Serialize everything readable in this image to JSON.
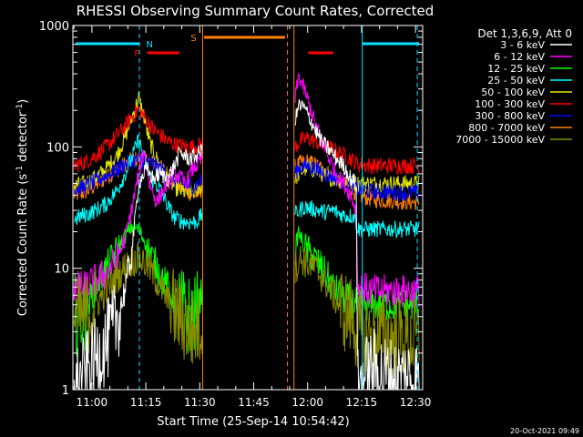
{
  "chart_data": {
    "type": "line",
    "title": "RHESSI Observing Summary Count Rates, Corrected",
    "ylabel_text": "Corrected Count Rate (s",
    "ylabel_sup": "-1",
    "ylabel_tail": " detector",
    "ylabel_sup2": "-1",
    "ylabel_end": ")",
    "xlabel": "Start Time (25-Sep-14 10:54:42)",
    "timestamp": "20-Oct-2021 09:49",
    "x_unit": "minutes of day (UT)",
    "x_range": [
      654.7,
      752
    ],
    "y_scale": "log",
    "y_range": [
      1,
      1000
    ],
    "x_ticks": [
      {
        "v": 660,
        "label": "11:00"
      },
      {
        "v": 675,
        "label": "11:15"
      },
      {
        "v": 690,
        "label": "11:30"
      },
      {
        "v": 705,
        "label": "11:45"
      },
      {
        "v": 720,
        "label": "12:00"
      },
      {
        "v": 735,
        "label": "12:15"
      },
      {
        "v": 750,
        "label": "12:30"
      }
    ],
    "y_ticks": [
      {
        "v": 1,
        "label": "1"
      },
      {
        "v": 10,
        "label": "10"
      },
      {
        "v": 100,
        "label": "100"
      },
      {
        "v": 1000,
        "label": "1000"
      }
    ],
    "legend_title": "Det 1,3,6,9, Att 0",
    "legend_placement": "right",
    "series": [
      {
        "name": "3 - 6 keV",
        "color": "#ffffff",
        "seg1": [
          [
            655,
            1.0
          ],
          [
            660,
            1.6
          ],
          [
            664,
            2.4
          ],
          [
            668,
            4.5
          ],
          [
            671,
            13
          ],
          [
            673,
            50
          ],
          [
            675,
            65
          ],
          [
            677,
            55
          ],
          [
            679,
            60
          ],
          [
            681,
            55
          ],
          [
            683,
            70
          ],
          [
            684.5,
            90
          ],
          [
            687,
            80
          ],
          [
            689,
            85
          ],
          [
            690.8,
            95
          ]
        ],
        "seg2": [
          [
            716.5,
            160
          ],
          [
            717.5,
            220
          ],
          [
            719,
            210
          ],
          [
            720.5,
            175
          ],
          [
            722,
            140
          ],
          [
            724,
            110
          ],
          [
            726,
            95
          ],
          [
            728,
            80
          ],
          [
            730,
            70
          ],
          [
            732,
            55
          ],
          [
            733.5,
            50
          ],
          [
            734,
            1.0
          ],
          [
            735,
            1.2
          ],
          [
            738,
            1.5
          ],
          [
            744,
            1.2
          ],
          [
            748,
            1.3
          ],
          [
            751,
            1.2
          ]
        ]
      },
      {
        "name": "6 - 12 keV",
        "color": "#ff00ff",
        "seg1": [
          [
            655,
            7
          ],
          [
            658,
            7
          ],
          [
            661,
            8
          ],
          [
            664,
            9
          ],
          [
            667,
            12
          ],
          [
            669,
            17
          ],
          [
            671,
            30
          ],
          [
            673,
            60
          ],
          [
            674.5,
            95
          ],
          [
            676,
            50
          ],
          [
            678,
            35
          ],
          [
            680,
            45
          ],
          [
            682,
            55
          ],
          [
            683.5,
            60
          ],
          [
            686,
            50
          ],
          [
            688,
            65
          ],
          [
            690.8,
            80
          ]
        ],
        "seg2": [
          [
            716.5,
            250
          ],
          [
            717.5,
            380
          ],
          [
            719,
            300
          ],
          [
            720.5,
            220
          ],
          [
            722,
            160
          ],
          [
            724,
            110
          ],
          [
            726,
            80
          ],
          [
            728,
            60
          ],
          [
            730,
            50
          ],
          [
            732,
            40
          ],
          [
            733.5,
            30
          ],
          [
            734,
            7
          ],
          [
            738,
            6.5
          ],
          [
            744,
            6.5
          ],
          [
            748,
            6.5
          ],
          [
            751,
            6.5
          ]
        ]
      },
      {
        "name": "12 - 25 keV",
        "color": "#00ff00",
        "seg1": [
          [
            655,
            4
          ],
          [
            658,
            4.5
          ],
          [
            661,
            7
          ],
          [
            664,
            10
          ],
          [
            667,
            14
          ],
          [
            669,
            18
          ],
          [
            671,
            22
          ],
          [
            673,
            21
          ],
          [
            675,
            16
          ],
          [
            677,
            12
          ],
          [
            679,
            9
          ],
          [
            681,
            7
          ],
          [
            683,
            5.5
          ],
          [
            686,
            4.2
          ],
          [
            689,
            4
          ],
          [
            690.8,
            7
          ]
        ],
        "seg2": [
          [
            716.5,
            14
          ],
          [
            717.5,
            20
          ],
          [
            719,
            15
          ],
          [
            721,
            13
          ],
          [
            723,
            11
          ],
          [
            725,
            9
          ],
          [
            727,
            7
          ],
          [
            729,
            6
          ],
          [
            731,
            5.5
          ],
          [
            734,
            5
          ],
          [
            738,
            5
          ],
          [
            744,
            5
          ],
          [
            748,
            5
          ],
          [
            751,
            5
          ]
        ]
      },
      {
        "name": "25 - 50 keV",
        "color": "#00ffff",
        "seg1": [
          [
            655,
            25
          ],
          [
            657,
            27
          ],
          [
            659,
            28
          ],
          [
            661,
            30
          ],
          [
            664,
            34
          ],
          [
            667,
            44
          ],
          [
            669,
            58
          ],
          [
            671,
            80
          ],
          [
            673,
            115
          ],
          [
            675,
            72
          ],
          [
            677,
            52
          ],
          [
            679,
            45
          ],
          [
            681,
            33
          ],
          [
            683,
            26
          ],
          [
            686,
            24
          ],
          [
            689,
            24
          ],
          [
            690.8,
            28
          ]
        ],
        "seg2": [
          [
            716.5,
            28
          ],
          [
            719,
            32
          ],
          [
            721,
            31
          ],
          [
            723,
            30
          ],
          [
            725,
            29
          ],
          [
            727,
            30
          ],
          [
            729,
            28
          ],
          [
            731,
            27
          ],
          [
            733,
            27
          ],
          [
            734,
            21
          ],
          [
            738,
            21
          ],
          [
            744,
            21
          ],
          [
            748,
            21
          ],
          [
            751,
            21
          ]
        ]
      },
      {
        "name": "50 - 100 keV",
        "color": "#e6e600",
        "seg1": [
          [
            655,
            48
          ],
          [
            658,
            50
          ],
          [
            661,
            56
          ],
          [
            664,
            66
          ],
          [
            667,
            86
          ],
          [
            669,
            115
          ],
          [
            671,
            170
          ],
          [
            673,
            255
          ],
          [
            674.5,
            175
          ],
          [
            676,
            110
          ],
          [
            678,
            80
          ],
          [
            680,
            62
          ],
          [
            682,
            50
          ],
          [
            684,
            44
          ],
          [
            686,
            42
          ],
          [
            688,
            42
          ],
          [
            690.8,
            48
          ]
        ],
        "seg2": [
          [
            716.5,
            55
          ],
          [
            718,
            62
          ],
          [
            720,
            68
          ],
          [
            722,
            64
          ],
          [
            724,
            60
          ],
          [
            726,
            56
          ],
          [
            728,
            54
          ],
          [
            730,
            52
          ],
          [
            732,
            50
          ],
          [
            734,
            50
          ],
          [
            738,
            50
          ],
          [
            744,
            50
          ],
          [
            748,
            50
          ],
          [
            751,
            50
          ]
        ]
      },
      {
        "name": "100 - 300 keV",
        "color": "#ff0000",
        "seg1": [
          [
            655,
            70
          ],
          [
            658,
            75
          ],
          [
            661,
            85
          ],
          [
            664,
            100
          ],
          [
            667,
            125
          ],
          [
            669,
            145
          ],
          [
            671,
            175
          ],
          [
            673,
            205
          ],
          [
            675,
            170
          ],
          [
            677,
            140
          ],
          [
            679,
            125
          ],
          [
            681,
            112
          ],
          [
            683,
            105
          ],
          [
            686,
            100
          ],
          [
            688,
            100
          ],
          [
            690.8,
            105
          ]
        ],
        "seg2": [
          [
            716.5,
            100
          ],
          [
            718,
            112
          ],
          [
            720,
            118
          ],
          [
            722,
            112
          ],
          [
            724,
            104
          ],
          [
            726,
            98
          ],
          [
            728,
            92
          ],
          [
            730,
            86
          ],
          [
            732,
            80
          ],
          [
            734,
            72
          ],
          [
            738,
            70
          ],
          [
            744,
            70
          ],
          [
            748,
            70
          ],
          [
            751,
            70
          ]
        ]
      },
      {
        "name": "300 - 800 keV",
        "color": "#0000ff",
        "seg1": [
          [
            655,
            45
          ],
          [
            658,
            47
          ],
          [
            661,
            52
          ],
          [
            664,
            58
          ],
          [
            667,
            65
          ],
          [
            669,
            72
          ],
          [
            671,
            76
          ],
          [
            673,
            78
          ],
          [
            675,
            76
          ],
          [
            677,
            72
          ],
          [
            679,
            66
          ],
          [
            681,
            60
          ],
          [
            683,
            54
          ],
          [
            685,
            50
          ],
          [
            687,
            48
          ],
          [
            689,
            48
          ],
          [
            690.8,
            55
          ]
        ],
        "seg2": [
          [
            716.5,
            62
          ],
          [
            718,
            68
          ],
          [
            720,
            70
          ],
          [
            722,
            66
          ],
          [
            724,
            62
          ],
          [
            726,
            58
          ],
          [
            728,
            55
          ],
          [
            730,
            52
          ],
          [
            732,
            50
          ],
          [
            734,
            45
          ],
          [
            738,
            43
          ],
          [
            744,
            42
          ],
          [
            748,
            42
          ],
          [
            751,
            42
          ]
        ]
      },
      {
        "name": "800 - 7000 keV",
        "color": "#ff8000",
        "seg1": [
          [
            655,
            40
          ],
          [
            658,
            42
          ],
          [
            661,
            48
          ],
          [
            664,
            56
          ],
          [
            667,
            64
          ],
          [
            669,
            72
          ],
          [
            671,
            78
          ],
          [
            673,
            80
          ],
          [
            675,
            78
          ],
          [
            677,
            74
          ],
          [
            679,
            68
          ],
          [
            681,
            60
          ],
          [
            683,
            52
          ],
          [
            685,
            46
          ],
          [
            687,
            42
          ],
          [
            689,
            40
          ],
          [
            690.8,
            46
          ]
        ],
        "seg2": [
          [
            716.5,
            68
          ],
          [
            718,
            74
          ],
          [
            720,
            76
          ],
          [
            722,
            72
          ],
          [
            724,
            66
          ],
          [
            726,
            60
          ],
          [
            728,
            55
          ],
          [
            730,
            50
          ],
          [
            732,
            46
          ],
          [
            734,
            40
          ],
          [
            738,
            37
          ],
          [
            744,
            36
          ],
          [
            748,
            35
          ],
          [
            751,
            35
          ]
        ]
      },
      {
        "name": "7000 - 15000 keV",
        "color": "#8b8b00",
        "seg1": [
          [
            655,
            3.8
          ],
          [
            658,
            4
          ],
          [
            661,
            5
          ],
          [
            664,
            6.5
          ],
          [
            667,
            8.5
          ],
          [
            669,
            10
          ],
          [
            671,
            11.5
          ],
          [
            673,
            12
          ],
          [
            675,
            11
          ],
          [
            677,
            9
          ],
          [
            679,
            7
          ],
          [
            681,
            5.5
          ],
          [
            683,
            4.5
          ],
          [
            686,
            3.5
          ],
          [
            688,
            3
          ],
          [
            690.8,
            3.5
          ]
        ],
        "seg2": [
          [
            716.5,
            10
          ],
          [
            718,
            12
          ],
          [
            720,
            11
          ],
          [
            722,
            10
          ],
          [
            724,
            8.5
          ],
          [
            726,
            7
          ],
          [
            728,
            5.5
          ],
          [
            730,
            4.5
          ],
          [
            732,
            4
          ],
          [
            734,
            3
          ],
          [
            738,
            2.8
          ],
          [
            744,
            2.7
          ],
          [
            748,
            2.6
          ],
          [
            751,
            2.6
          ]
        ]
      }
    ],
    "flags": [
      {
        "label": "N",
        "color": "#00e5ff",
        "label_at": 676,
        "segments": [
          [
            655.5,
            673.2
          ],
          [
            735.2,
            751
          ]
        ]
      },
      {
        "label": "F",
        "color": "#ff0000",
        "label_at": 672.5,
        "segments": [
          [
            675.4,
            684.3
          ],
          [
            720.2,
            727.1
          ]
        ]
      },
      {
        "label": "S",
        "color": "#ff8000",
        "label_at": 688.3,
        "segments": [
          [
            691.2,
            713.7
          ]
        ]
      }
    ],
    "vlines": [
      {
        "x": 673.2,
        "color": "#00e5ff",
        "style": "dashed"
      },
      {
        "x": 690.8,
        "color": "#ff8000",
        "style": "solid"
      },
      {
        "x": 714.4,
        "color": "#ff8000",
        "style": "dashed"
      },
      {
        "x": 716.2,
        "color": "#ff8000",
        "style": "solid"
      },
      {
        "x": 735.2,
        "color": "#00e5ff",
        "style": "solid"
      },
      {
        "x": 750.5,
        "color": "#00e5ff",
        "style": "dashed"
      }
    ]
  }
}
